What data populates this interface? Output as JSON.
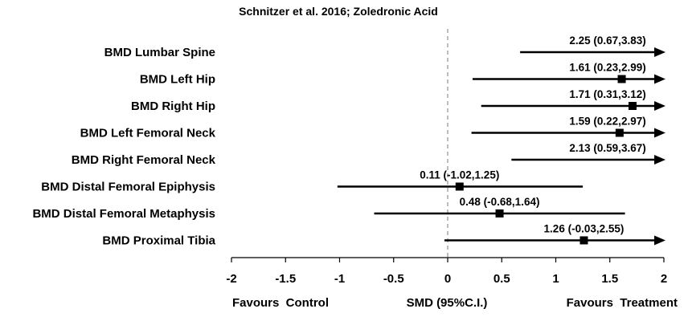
{
  "chart_data": {
    "type": "forest",
    "title": "Schnitzer et al. 2016; Zoledronic Acid",
    "xlabel": "SMD (95%C.I.)",
    "left_label": "Favours  Control",
    "right_label": "Favours  Treatment",
    "xlim": [
      -2,
      2
    ],
    "ticks": [
      -2,
      -1.5,
      -1,
      -0.5,
      0,
      0.5,
      1,
      1.5,
      2
    ],
    "tick_labels": [
      "-2",
      "-1.5",
      "-1",
      "-0.5",
      "0",
      "0.5",
      "1",
      "1.5",
      "2"
    ],
    "reference_line": 0,
    "rows": [
      {
        "label": "BMD Lumbar Spine",
        "estimate": 2.25,
        "lower": 0.67,
        "upper": 3.83,
        "text": "2.25 (0.67,3.83)"
      },
      {
        "label": "BMD Left Hip",
        "estimate": 1.61,
        "lower": 0.23,
        "upper": 2.99,
        "text": "1.61 (0.23,2.99)"
      },
      {
        "label": "BMD Right Hip",
        "estimate": 1.71,
        "lower": 0.31,
        "upper": 3.12,
        "text": "1.71 (0.31,3.12)"
      },
      {
        "label": "BMD Left Femoral Neck",
        "estimate": 1.59,
        "lower": 0.22,
        "upper": 2.97,
        "text": "1.59 (0.22,2.97)"
      },
      {
        "label": "BMD Right Femoral Neck",
        "estimate": 2.13,
        "lower": 0.59,
        "upper": 3.67,
        "text": "2.13 (0.59,3.67)"
      },
      {
        "label": "BMD Distal Femoral Epiphysis",
        "estimate": 0.11,
        "lower": -1.02,
        "upper": 1.25,
        "text": "0.11 (-1.02,1.25)"
      },
      {
        "label": "BMD Distal Femoral Metaphysis",
        "estimate": 0.48,
        "lower": -0.68,
        "upper": 1.64,
        "text": "0.48 (-0.68,1.64)"
      },
      {
        "label": "BMD Proximal Tibia",
        "estimate": 1.26,
        "lower": -0.03,
        "upper": 2.55,
        "text": "1.26 (-0.03,2.55)"
      }
    ]
  }
}
